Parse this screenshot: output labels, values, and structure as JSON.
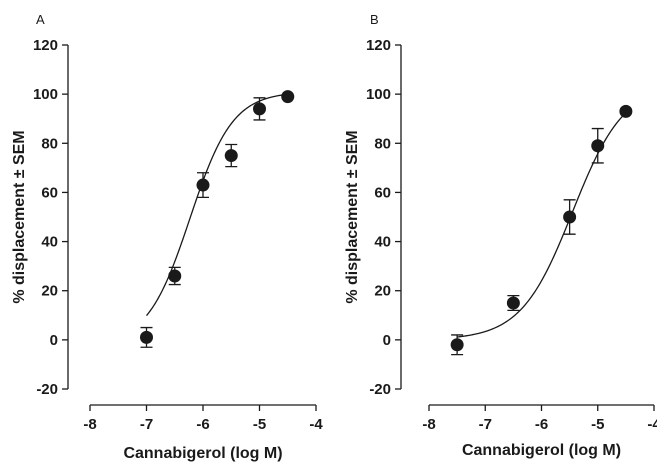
{
  "chart_data": [
    {
      "panel": "A",
      "type": "scatter",
      "xlabel": "Cannabigerol (log M)",
      "ylabel": "% displacement ± SEM",
      "xlim": [
        -8,
        -4
      ],
      "ylim": [
        -20,
        120
      ],
      "xticks": [
        -8,
        -7,
        -6,
        -5,
        -4
      ],
      "yticks": [
        -20,
        0,
        20,
        40,
        60,
        80,
        100,
        120
      ],
      "points": [
        {
          "x": -7.0,
          "y": 1,
          "sem": 4
        },
        {
          "x": -6.5,
          "y": 26,
          "sem": 3.5
        },
        {
          "x": -6.0,
          "y": 63,
          "sem": 5
        },
        {
          "x": -5.5,
          "y": 75,
          "sem": 4.5
        },
        {
          "x": -5.0,
          "y": 94,
          "sem": 4.5
        },
        {
          "x": -4.5,
          "y": 99,
          "sem": 0
        }
      ],
      "fit": {
        "bottom": -2,
        "top": 101,
        "logEC50": -6.23,
        "hill": 1.15
      }
    },
    {
      "panel": "B",
      "type": "scatter",
      "xlabel": "Cannabigerol (log M)",
      "ylabel": "% displacement ± SEM",
      "xlim": [
        -8,
        -4
      ],
      "ylim": [
        -20,
        120
      ],
      "xticks": [
        -8,
        -7,
        -6,
        -5,
        -4
      ],
      "yticks": [
        -20,
        0,
        20,
        40,
        60,
        80,
        100,
        120
      ],
      "points": [
        {
          "x": -7.5,
          "y": -2,
          "sem": 4
        },
        {
          "x": -6.5,
          "y": 15,
          "sem": 3
        },
        {
          "x": -5.5,
          "y": 50,
          "sem": 7
        },
        {
          "x": -5.0,
          "y": 79,
          "sem": 7
        },
        {
          "x": -4.5,
          "y": 93,
          "sem": 0
        }
      ],
      "fit": {
        "bottom": 0,
        "top": 104,
        "logEC50": -5.45,
        "hill": 0.95
      }
    }
  ]
}
